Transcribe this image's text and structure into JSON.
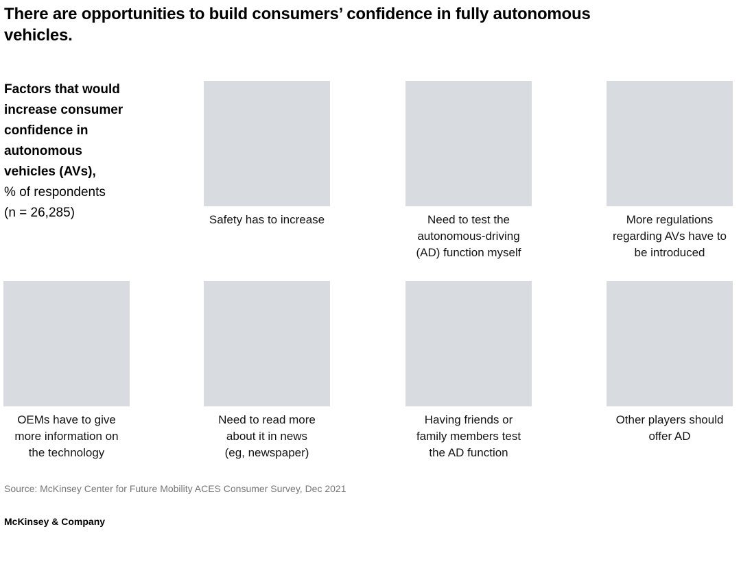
{
  "header": {
    "title": "There are opportunities to build consumers’ confidence in fully autonomous\nvehicles."
  },
  "exhibit": {
    "description_heading": "Factors that would\nincrease consumer\nconfidence in\nautonomous\nvehicles (AVs),",
    "description_metric": "% of respondents",
    "description_sample": "(n = 26,285)",
    "placeholder_color": "#d8dce0",
    "factors": [
      {
        "caption": "Safety has to increase"
      },
      {
        "caption": "Need to test the\nautonomous-driving\n(AD) function myself"
      },
      {
        "caption": "More regulations\nregarding AVs have to\nbe introduced"
      },
      {
        "caption": "OEMs have to give\nmore information on\nthe technology"
      },
      {
        "caption": "Need to read more\nabout it in news\n(eg, newspaper)"
      },
      {
        "caption": "Having friends or\nfamily members test\nthe AD function"
      },
      {
        "caption": "Other players should\noffer AD"
      }
    ]
  },
  "footer": {
    "source": "Source: McKinsey Center for Future Mobility ACES Consumer Survey, Dec 2021",
    "brand": "McKinsey & Company"
  },
  "chart_data": {
    "type": "table",
    "title": "There are opportunities to build consumers’ confidence in fully autonomous vehicles.",
    "subtitle": "Factors that would increase consumer confidence in autonomous vehicles (AVs), % of respondents (n = 26,285)",
    "categories": [
      "Safety has to increase",
      "Need to test the autonomous-driving (AD) function myself",
      "More regulations regarding AVs have to be introduced",
      "OEMs have to give more information on the technology",
      "Need to read more about it in news (eg, newspaper)",
      "Having friends or family members test the AD function",
      "Other players should offer AD"
    ],
    "values_visible": false,
    "layout": "2 rows of image tiles: 3 tiles in row 1 (columns 2-4), 4 tiles in row 2 (columns 1-4); description block occupies row 1 column 1",
    "source": "Source: McKinsey Center for Future Mobility ACES Consumer Survey, Dec 2021"
  }
}
